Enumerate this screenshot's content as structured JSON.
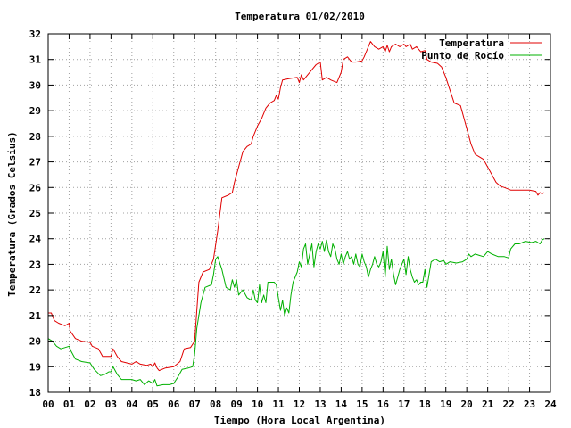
{
  "chart_data": {
    "type": "line",
    "title": "Temperatura 01/02/2010",
    "xlabel": "Tiempo (Hora Local Argentina)",
    "ylabel": "Temperatura (Grados Celsius)",
    "xlim": [
      0,
      24
    ],
    "ylim": [
      18,
      32
    ],
    "x_ticks": [
      {
        "value": 0,
        "label": "00"
      },
      {
        "value": 1,
        "label": "01"
      },
      {
        "value": 2,
        "label": "02"
      },
      {
        "value": 3,
        "label": "03"
      },
      {
        "value": 4,
        "label": "04"
      },
      {
        "value": 5,
        "label": "05"
      },
      {
        "value": 6,
        "label": "06"
      },
      {
        "value": 7,
        "label": "07"
      },
      {
        "value": 8,
        "label": "08"
      },
      {
        "value": 9,
        "label": "09"
      },
      {
        "value": 10,
        "label": "10"
      },
      {
        "value": 11,
        "label": "11"
      },
      {
        "value": 12,
        "label": "12"
      },
      {
        "value": 13,
        "label": "13"
      },
      {
        "value": 14,
        "label": "14"
      },
      {
        "value": 15,
        "label": "15"
      },
      {
        "value": 16,
        "label": "16"
      },
      {
        "value": 17,
        "label": "17"
      },
      {
        "value": 18,
        "label": "18"
      },
      {
        "value": 19,
        "label": "19"
      },
      {
        "value": 20,
        "label": "20"
      },
      {
        "value": 21,
        "label": "21"
      },
      {
        "value": 22,
        "label": "22"
      },
      {
        "value": 23,
        "label": "23"
      },
      {
        "value": 24,
        "label": "24"
      }
    ],
    "y_ticks": [
      {
        "value": 18,
        "label": "18"
      },
      {
        "value": 19,
        "label": "19"
      },
      {
        "value": 20,
        "label": "20"
      },
      {
        "value": 21,
        "label": "21"
      },
      {
        "value": 22,
        "label": "22"
      },
      {
        "value": 23,
        "label": "23"
      },
      {
        "value": 24,
        "label": "24"
      },
      {
        "value": 25,
        "label": "25"
      },
      {
        "value": 26,
        "label": "26"
      },
      {
        "value": 27,
        "label": "27"
      },
      {
        "value": 28,
        "label": "28"
      },
      {
        "value": 29,
        "label": "29"
      },
      {
        "value": 30,
        "label": "30"
      },
      {
        "value": 31,
        "label": "31"
      },
      {
        "value": 32,
        "label": "32"
      }
    ],
    "grid": true,
    "legend_position": "top-right",
    "series": [
      {
        "name": "Temperatura",
        "color": "#e00000",
        "points": [
          [
            0.0,
            21.1
          ],
          [
            0.15,
            21.1
          ],
          [
            0.3,
            20.8
          ],
          [
            0.5,
            20.7
          ],
          [
            0.8,
            20.6
          ],
          [
            1.0,
            20.7
          ],
          [
            1.05,
            20.4
          ],
          [
            1.3,
            20.1
          ],
          [
            1.6,
            20.0
          ],
          [
            2.0,
            19.95
          ],
          [
            2.1,
            19.8
          ],
          [
            2.4,
            19.7
          ],
          [
            2.6,
            19.4
          ],
          [
            3.0,
            19.4
          ],
          [
            3.1,
            19.7
          ],
          [
            3.3,
            19.4
          ],
          [
            3.5,
            19.2
          ],
          [
            4.0,
            19.1
          ],
          [
            4.2,
            19.2
          ],
          [
            4.4,
            19.1
          ],
          [
            4.7,
            19.05
          ],
          [
            4.9,
            19.1
          ],
          [
            5.0,
            19.0
          ],
          [
            5.1,
            19.15
          ],
          [
            5.2,
            18.95
          ],
          [
            5.3,
            18.85
          ],
          [
            5.6,
            18.95
          ],
          [
            6.0,
            19.0
          ],
          [
            6.3,
            19.2
          ],
          [
            6.5,
            19.7
          ],
          [
            6.8,
            19.75
          ],
          [
            7.0,
            20.0
          ],
          [
            7.1,
            21.2
          ],
          [
            7.2,
            22.3
          ],
          [
            7.4,
            22.7
          ],
          [
            7.7,
            22.8
          ],
          [
            7.9,
            23.2
          ],
          [
            8.1,
            24.3
          ],
          [
            8.3,
            25.6
          ],
          [
            8.6,
            25.7
          ],
          [
            8.8,
            25.8
          ],
          [
            8.9,
            26.2
          ],
          [
            9.1,
            26.8
          ],
          [
            9.3,
            27.4
          ],
          [
            9.5,
            27.6
          ],
          [
            9.7,
            27.7
          ],
          [
            9.8,
            28.0
          ],
          [
            10.0,
            28.4
          ],
          [
            10.2,
            28.7
          ],
          [
            10.4,
            29.1
          ],
          [
            10.6,
            29.3
          ],
          [
            10.8,
            29.4
          ],
          [
            10.9,
            29.6
          ],
          [
            11.0,
            29.45
          ],
          [
            11.1,
            29.9
          ],
          [
            11.2,
            30.2
          ],
          [
            11.5,
            30.25
          ],
          [
            11.9,
            30.3
          ],
          [
            12.0,
            30.1
          ],
          [
            12.1,
            30.4
          ],
          [
            12.2,
            30.2
          ],
          [
            12.4,
            30.4
          ],
          [
            12.6,
            30.6
          ],
          [
            12.8,
            30.8
          ],
          [
            13.0,
            30.9
          ],
          [
            13.1,
            30.2
          ],
          [
            13.3,
            30.3
          ],
          [
            13.5,
            30.2
          ],
          [
            13.8,
            30.1
          ],
          [
            14.0,
            30.5
          ],
          [
            14.1,
            31.0
          ],
          [
            14.3,
            31.1
          ],
          [
            14.5,
            30.9
          ],
          [
            14.7,
            30.9
          ],
          [
            15.0,
            30.95
          ],
          [
            15.1,
            31.1
          ],
          [
            15.3,
            31.5
          ],
          [
            15.4,
            31.7
          ],
          [
            15.6,
            31.5
          ],
          [
            15.8,
            31.4
          ],
          [
            16.0,
            31.5
          ],
          [
            16.1,
            31.3
          ],
          [
            16.2,
            31.55
          ],
          [
            16.3,
            31.3
          ],
          [
            16.4,
            31.5
          ],
          [
            16.6,
            31.6
          ],
          [
            16.8,
            31.5
          ],
          [
            17.0,
            31.6
          ],
          [
            17.1,
            31.5
          ],
          [
            17.3,
            31.6
          ],
          [
            17.4,
            31.4
          ],
          [
            17.6,
            31.5
          ],
          [
            17.8,
            31.3
          ],
          [
            18.0,
            31.35
          ],
          [
            18.1,
            31.0
          ],
          [
            18.3,
            30.9
          ],
          [
            18.6,
            30.85
          ],
          [
            18.8,
            30.7
          ],
          [
            19.0,
            30.3
          ],
          [
            19.2,
            29.8
          ],
          [
            19.4,
            29.3
          ],
          [
            19.7,
            29.2
          ],
          [
            19.8,
            28.9
          ],
          [
            20.0,
            28.3
          ],
          [
            20.2,
            27.7
          ],
          [
            20.4,
            27.3
          ],
          [
            20.6,
            27.2
          ],
          [
            20.8,
            27.1
          ],
          [
            21.0,
            26.8
          ],
          [
            21.2,
            26.5
          ],
          [
            21.4,
            26.2
          ],
          [
            21.6,
            26.05
          ],
          [
            21.8,
            26.0
          ],
          [
            21.95,
            25.95
          ],
          [
            22.1,
            25.9
          ],
          [
            22.5,
            25.9
          ],
          [
            23.0,
            25.9
          ],
          [
            23.3,
            25.85
          ],
          [
            23.4,
            25.7
          ],
          [
            23.5,
            25.8
          ],
          [
            23.6,
            25.75
          ],
          [
            23.7,
            25.8
          ]
        ]
      },
      {
        "name": "Punto de Rocío",
        "color": "#00b000",
        "points": [
          [
            0.0,
            20.1
          ],
          [
            0.2,
            20.0
          ],
          [
            0.4,
            19.8
          ],
          [
            0.6,
            19.7
          ],
          [
            0.8,
            19.75
          ],
          [
            1.0,
            19.8
          ],
          [
            1.1,
            19.6
          ],
          [
            1.3,
            19.3
          ],
          [
            1.6,
            19.2
          ],
          [
            2.0,
            19.15
          ],
          [
            2.2,
            18.9
          ],
          [
            2.5,
            18.65
          ],
          [
            2.7,
            18.7
          ],
          [
            2.9,
            18.8
          ],
          [
            3.0,
            18.8
          ],
          [
            3.1,
            19.0
          ],
          [
            3.3,
            18.7
          ],
          [
            3.5,
            18.5
          ],
          [
            4.0,
            18.5
          ],
          [
            4.2,
            18.45
          ],
          [
            4.4,
            18.5
          ],
          [
            4.6,
            18.3
          ],
          [
            4.8,
            18.45
          ],
          [
            5.0,
            18.35
          ],
          [
            5.1,
            18.5
          ],
          [
            5.2,
            18.25
          ],
          [
            5.5,
            18.3
          ],
          [
            5.8,
            18.3
          ],
          [
            6.0,
            18.35
          ],
          [
            6.2,
            18.6
          ],
          [
            6.4,
            18.9
          ],
          [
            6.7,
            18.95
          ],
          [
            6.9,
            19.0
          ],
          [
            7.0,
            19.5
          ],
          [
            7.1,
            20.5
          ],
          [
            7.3,
            21.5
          ],
          [
            7.5,
            22.1
          ],
          [
            7.8,
            22.2
          ],
          [
            7.9,
            22.6
          ],
          [
            8.0,
            23.2
          ],
          [
            8.1,
            23.3
          ],
          [
            8.3,
            22.8
          ],
          [
            8.5,
            22.1
          ],
          [
            8.7,
            22.0
          ],
          [
            8.8,
            22.4
          ],
          [
            8.9,
            22.1
          ],
          [
            9.0,
            22.4
          ],
          [
            9.1,
            21.8
          ],
          [
            9.3,
            22.0
          ],
          [
            9.5,
            21.7
          ],
          [
            9.7,
            21.6
          ],
          [
            9.8,
            22.0
          ],
          [
            9.9,
            21.6
          ],
          [
            10.0,
            21.5
          ],
          [
            10.1,
            22.2
          ],
          [
            10.2,
            21.5
          ],
          [
            10.3,
            21.8
          ],
          [
            10.4,
            21.5
          ],
          [
            10.5,
            22.3
          ],
          [
            10.8,
            22.3
          ],
          [
            10.9,
            22.2
          ],
          [
            11.0,
            21.7
          ],
          [
            11.1,
            21.2
          ],
          [
            11.2,
            21.6
          ],
          [
            11.3,
            21.0
          ],
          [
            11.4,
            21.3
          ],
          [
            11.5,
            21.1
          ],
          [
            11.6,
            21.8
          ],
          [
            11.7,
            22.3
          ],
          [
            11.9,
            22.7
          ],
          [
            12.0,
            23.1
          ],
          [
            12.1,
            22.9
          ],
          [
            12.2,
            23.6
          ],
          [
            12.3,
            23.8
          ],
          [
            12.4,
            23.0
          ],
          [
            12.5,
            23.4
          ],
          [
            12.6,
            23.8
          ],
          [
            12.7,
            22.9
          ],
          [
            12.8,
            23.5
          ],
          [
            12.9,
            23.8
          ],
          [
            13.0,
            23.6
          ],
          [
            13.1,
            23.9
          ],
          [
            13.2,
            23.5
          ],
          [
            13.3,
            23.95
          ],
          [
            13.4,
            23.5
          ],
          [
            13.5,
            23.3
          ],
          [
            13.6,
            23.8
          ],
          [
            13.7,
            23.6
          ],
          [
            13.8,
            23.2
          ],
          [
            13.9,
            23.0
          ],
          [
            14.0,
            23.4
          ],
          [
            14.1,
            23.0
          ],
          [
            14.2,
            23.3
          ],
          [
            14.3,
            23.5
          ],
          [
            14.4,
            23.2
          ],
          [
            14.5,
            23.3
          ],
          [
            14.6,
            23.0
          ],
          [
            14.7,
            23.4
          ],
          [
            14.8,
            23.0
          ],
          [
            14.9,
            22.9
          ],
          [
            15.0,
            23.4
          ],
          [
            15.1,
            23.1
          ],
          [
            15.2,
            22.9
          ],
          [
            15.3,
            22.5
          ],
          [
            15.4,
            22.8
          ],
          [
            15.5,
            23.0
          ],
          [
            15.6,
            23.3
          ],
          [
            15.7,
            23.0
          ],
          [
            15.8,
            22.9
          ],
          [
            15.9,
            23.1
          ],
          [
            16.0,
            23.5
          ],
          [
            16.1,
            22.5
          ],
          [
            16.2,
            23.7
          ],
          [
            16.3,
            22.8
          ],
          [
            16.4,
            23.2
          ],
          [
            16.5,
            22.6
          ],
          [
            16.6,
            22.2
          ],
          [
            16.7,
            22.5
          ],
          [
            16.8,
            22.8
          ],
          [
            16.9,
            23.0
          ],
          [
            17.0,
            23.2
          ],
          [
            17.1,
            22.6
          ],
          [
            17.2,
            23.3
          ],
          [
            17.3,
            22.8
          ],
          [
            17.4,
            22.5
          ],
          [
            17.5,
            22.3
          ],
          [
            17.6,
            22.4
          ],
          [
            17.7,
            22.2
          ],
          [
            17.8,
            22.3
          ],
          [
            17.9,
            22.3
          ],
          [
            18.0,
            22.8
          ],
          [
            18.1,
            22.1
          ],
          [
            18.2,
            22.6
          ],
          [
            18.3,
            23.1
          ],
          [
            18.5,
            23.2
          ],
          [
            18.7,
            23.1
          ],
          [
            18.9,
            23.15
          ],
          [
            19.0,
            23.0
          ],
          [
            19.2,
            23.1
          ],
          [
            19.5,
            23.05
          ],
          [
            19.8,
            23.1
          ],
          [
            20.0,
            23.2
          ],
          [
            20.1,
            23.4
          ],
          [
            20.2,
            23.3
          ],
          [
            20.4,
            23.4
          ],
          [
            20.6,
            23.35
          ],
          [
            20.8,
            23.3
          ],
          [
            21.0,
            23.5
          ],
          [
            21.2,
            23.4
          ],
          [
            21.5,
            23.3
          ],
          [
            21.8,
            23.3
          ],
          [
            22.0,
            23.25
          ],
          [
            22.1,
            23.6
          ],
          [
            22.3,
            23.8
          ],
          [
            22.5,
            23.8
          ],
          [
            22.8,
            23.9
          ],
          [
            23.1,
            23.85
          ],
          [
            23.3,
            23.9
          ],
          [
            23.5,
            23.8
          ],
          [
            23.6,
            23.95
          ],
          [
            23.7,
            24.0
          ]
        ]
      }
    ]
  }
}
